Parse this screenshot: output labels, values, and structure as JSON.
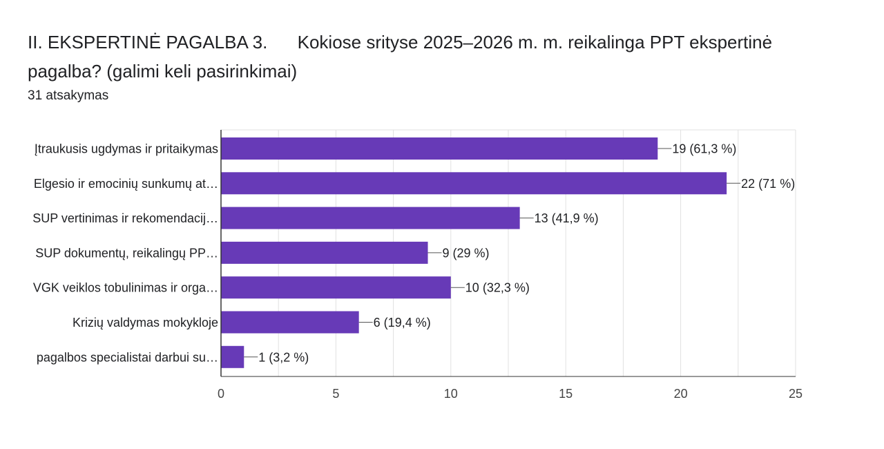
{
  "question": {
    "title": "II. EKSPERTINĖ PAGALBA  3.      Kokiose srityse 2025–2026 m. m. reikalinga PPT ekspertinė pagalba? (galimi keli pasirinkimai)",
    "response_count": "31 atsakymas"
  },
  "chart_data": {
    "type": "bar",
    "orientation": "horizontal",
    "categories": [
      "Įtraukusis ugdymas ir pritaikymas",
      "Elgesio ir emocinių sunkumų at…",
      "SUP vertinimas ir rekomendacij…",
      "SUP dokumentų, reikalingų PP…",
      "VGK veiklos tobulinimas ir orga…",
      "Krizių valdymas mokykloje",
      "pagalbos specialistai darbui su…"
    ],
    "values": [
      19,
      22,
      13,
      9,
      10,
      6,
      1
    ],
    "data_labels": [
      "19 (61,3 %)",
      "22 (71 %)",
      "13 (41,9 %)",
      "9 (29 %)",
      "10 (32,3 %)",
      "6 (19,4 %)",
      "1 (3,2 %)"
    ],
    "xlim": [
      0,
      25
    ],
    "xticks": [
      0,
      5,
      10,
      15,
      20,
      25
    ],
    "grid": true,
    "bar_color": "#673ab7",
    "grid_color": "#e0e0e0",
    "axis_color": "#333333"
  }
}
